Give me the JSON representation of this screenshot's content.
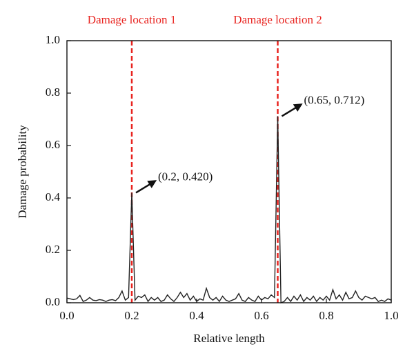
{
  "chart_data": {
    "type": "line",
    "x_label": "Relative length",
    "y_label": "Damage probability",
    "x": [
      0,
      0.01,
      0.02,
      0.03,
      0.04,
      0.05,
      0.06,
      0.07,
      0.08,
      0.09,
      0.1,
      0.11,
      0.12,
      0.13,
      0.14,
      0.15,
      0.16,
      0.17,
      0.18,
      0.19,
      0.2,
      0.21,
      0.22,
      0.23,
      0.24,
      0.25,
      0.26,
      0.27,
      0.28,
      0.29,
      0.3,
      0.31,
      0.32,
      0.33,
      0.34,
      0.35,
      0.36,
      0.37,
      0.38,
      0.39,
      0.4,
      0.41,
      0.42,
      0.43,
      0.44,
      0.45,
      0.46,
      0.47,
      0.48,
      0.49,
      0.5,
      0.51,
      0.52,
      0.53,
      0.54,
      0.55,
      0.56,
      0.57,
      0.58,
      0.59,
      0.6,
      0.61,
      0.62,
      0.63,
      0.64,
      0.65,
      0.66,
      0.67,
      0.68,
      0.69,
      0.7,
      0.71,
      0.72,
      0.73,
      0.74,
      0.75,
      0.76,
      0.77,
      0.78,
      0.79,
      0.8,
      0.81,
      0.82,
      0.83,
      0.84,
      0.85,
      0.86,
      0.87,
      0.88,
      0.89,
      0.9,
      0.91,
      0.92,
      0.93,
      0.94,
      0.95,
      0.96,
      0.97,
      0.98,
      0.99,
      1
    ],
    "values": [
      0.018,
      0.015,
      0.012,
      0.015,
      0.028,
      0.005,
      0.01,
      0.02,
      0.01,
      0.008,
      0.012,
      0.01,
      0.005,
      0.01,
      0.012,
      0.008,
      0.02,
      0.045,
      0.01,
      0.02,
      0.42,
      0.01,
      0.025,
      0.02,
      0.03,
      0.005,
      0.02,
      0.01,
      0.02,
      0.005,
      0.01,
      0.03,
      0.015,
      0.005,
      0.02,
      0.04,
      0.02,
      0.035,
      0.01,
      0.025,
      0.005,
      0.015,
      0.01,
      0.055,
      0.02,
      0.01,
      0.02,
      0.005,
      0.025,
      0.01,
      0.005,
      0.01,
      0.015,
      0.035,
      0.01,
      0.005,
      0.02,
      0.01,
      0.005,
      0.025,
      0.01,
      0.02,
      0.015,
      0.03,
      0.02,
      0.712,
      0.0,
      0.005,
      0.02,
      0.005,
      0.025,
      0.01,
      0.03,
      0.005,
      0.02,
      0.01,
      0.025,
      0.005,
      0.02,
      0.01,
      0.025,
      0.01,
      0.05,
      0.015,
      0.03,
      0.01,
      0.04,
      0.015,
      0.02,
      0.045,
      0.02,
      0.01,
      0.025,
      0.02,
      0.015,
      0.02,
      0.005,
      0.01,
      0.005,
      0.015,
      0.01
    ],
    "color": "#222222",
    "xlim": [
      0,
      1
    ],
    "ylim": [
      0,
      1
    ],
    "xticks": [
      {
        "value": 0,
        "label": "0.0"
      },
      0.2,
      0.4,
      0.6,
      0.8,
      {
        "value": 1,
        "label": "1.0"
      }
    ],
    "yticks": [
      {
        "value": 0,
        "label": "0.0"
      },
      0.2,
      0.4,
      0.6,
      0.8,
      {
        "value": 1,
        "label": "1.0"
      }
    ],
    "markers": [
      {
        "x": 0.2,
        "label": "Damage location 1"
      },
      {
        "x": 0.65,
        "label": "Damage location 2"
      }
    ],
    "marker_color": "#e8231f",
    "annotations": [
      "(0.2, 0.420)",
      "(0.65, 0.712)"
    ]
  }
}
